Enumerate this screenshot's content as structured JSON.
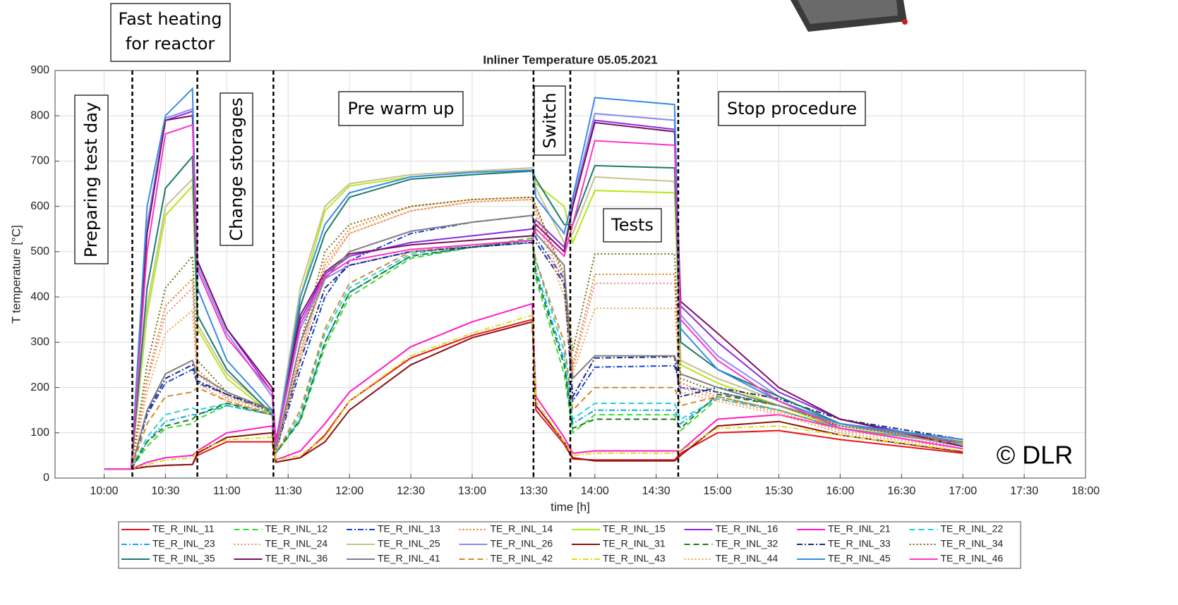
{
  "chart_data": {
    "type": "line",
    "title": "Inliner Temperature 05.05.2021",
    "xlabel": "time [h]",
    "ylabel": "T temperature [°C]",
    "xlim": [
      9.6,
      18
    ],
    "ylim": [
      0,
      900
    ],
    "xticks": [
      {
        "value": 10,
        "label": "10:00"
      },
      {
        "value": 10.5,
        "label": "10:30"
      },
      {
        "value": 11,
        "label": "11:00"
      },
      {
        "value": 11.5,
        "label": "11:30"
      },
      {
        "value": 12,
        "label": "12:00"
      },
      {
        "value": 12.5,
        "label": "12:30"
      },
      {
        "value": 13,
        "label": "13:00"
      },
      {
        "value": 13.5,
        "label": "13:30"
      },
      {
        "value": 14,
        "label": "14:00"
      },
      {
        "value": 14.5,
        "label": "14:30"
      },
      {
        "value": 15,
        "label": "15:00"
      },
      {
        "value": 15.5,
        "label": "15:30"
      },
      {
        "value": 16,
        "label": "16:00"
      },
      {
        "value": 16.5,
        "label": "16:30"
      },
      {
        "value": 17,
        "label": "17:00"
      },
      {
        "value": 17.5,
        "label": "17:30"
      },
      {
        "value": 18,
        "label": "18:00"
      }
    ],
    "yticks": [
      0,
      100,
      200,
      300,
      400,
      500,
      600,
      700,
      800,
      900
    ],
    "grid": true,
    "phase_boundaries": [
      10.23,
      10.76,
      11.38,
      13.5,
      13.8,
      14.68
    ],
    "annotations": [
      "Preparing test day",
      [
        "Fast heating",
        "for reactor"
      ],
      "Change storages",
      "Pre warm up",
      "Switch",
      "Tests",
      "Stop procedure"
    ],
    "watermark": "© DLR",
    "x": [
      10.0,
      10.22,
      10.35,
      10.5,
      10.72,
      10.76,
      11.0,
      11.37,
      11.4,
      11.6,
      11.8,
      12.0,
      12.5,
      13.0,
      13.49,
      13.52,
      13.75,
      13.82,
      14.0,
      14.65,
      14.7,
      15.0,
      15.5,
      16.0,
      17.0
    ],
    "series": [
      {
        "name": "TE_R_INL_11",
        "color": "#e8151b",
        "style": "solid",
        "values": [
          20,
          20,
          25,
          28,
          30,
          50,
          80,
          80,
          35,
          45,
          95,
          170,
          265,
          315,
          350,
          150,
          75,
          42,
          40,
          40,
          55,
          100,
          105,
          85,
          55
        ]
      },
      {
        "name": "TE_R_INL_12",
        "color": "#33dd33",
        "style": "dashed",
        "values": [
          20,
          20,
          70,
          110,
          120,
          130,
          160,
          140,
          55,
          125,
          290,
          400,
          485,
          510,
          530,
          440,
          230,
          100,
          140,
          140,
          105,
          175,
          150,
          110,
          75
        ]
      },
      {
        "name": "TE_R_INL_13",
        "color": "#1a3fd1",
        "style": "dashdot",
        "values": [
          20,
          20,
          140,
          210,
          240,
          210,
          185,
          145,
          60,
          240,
          400,
          480,
          540,
          565,
          580,
          530,
          440,
          170,
          245,
          248,
          200,
          190,
          160,
          115,
          80
        ]
      },
      {
        "name": "TE_R_INL_14",
        "color": "#e07a10",
        "style": "dotted",
        "values": [
          20,
          20,
          220,
          380,
          440,
          240,
          180,
          150,
          60,
          280,
          480,
          550,
          600,
          615,
          620,
          600,
          440,
          250,
          450,
          450,
          210,
          180,
          150,
          110,
          75
        ]
      },
      {
        "name": "TE_R_INL_15",
        "color": "#b3e81a",
        "style": "solid",
        "values": [
          20,
          20,
          360,
          580,
          645,
          330,
          220,
          140,
          80,
          400,
          590,
          645,
          665,
          675,
          680,
          650,
          600,
          520,
          635,
          630,
          250,
          210,
          160,
          110,
          78
        ]
      },
      {
        "name": "TE_R_INL_16",
        "color": "#8a2be2",
        "style": "solid",
        "values": [
          20,
          20,
          550,
          790,
          810,
          480,
          330,
          190,
          80,
          350,
          450,
          490,
          520,
          535,
          550,
          570,
          510,
          600,
          790,
          770,
          380,
          300,
          190,
          130,
          75
        ]
      },
      {
        "name": "TE_R_INL_21",
        "color": "#ff1ac6",
        "style": "solid",
        "values": [
          20,
          20,
          35,
          45,
          50,
          60,
          100,
          115,
          40,
          60,
          120,
          190,
          290,
          345,
          385,
          180,
          90,
          55,
          60,
          60,
          60,
          130,
          140,
          110,
          65
        ]
      },
      {
        "name": "TE_R_INL_22",
        "color": "#22d3d3",
        "style": "dashed",
        "values": [
          20,
          20,
          90,
          140,
          155,
          150,
          165,
          145,
          55,
          140,
          320,
          420,
          495,
          515,
          525,
          480,
          280,
          130,
          165,
          165,
          130,
          175,
          150,
          110,
          75
        ]
      },
      {
        "name": "TE_R_INL_23",
        "color": "#1aa3e8",
        "style": "dashdot",
        "values": [
          20,
          20,
          80,
          125,
          140,
          140,
          160,
          140,
          55,
          130,
          300,
          410,
          490,
          510,
          525,
          460,
          260,
          120,
          150,
          150,
          120,
          180,
          150,
          110,
          75
        ]
      },
      {
        "name": "TE_R_INL_24",
        "color": "#f08080",
        "style": "dotted",
        "values": [
          20,
          20,
          210,
          360,
          420,
          230,
          175,
          150,
          60,
          270,
          470,
          540,
          590,
          610,
          615,
          590,
          420,
          240,
          430,
          430,
          200,
          175,
          145,
          105,
          70
        ]
      },
      {
        "name": "TE_R_INL_25",
        "color": "#c8c08a",
        "style": "solid",
        "values": [
          20,
          20,
          380,
          600,
          660,
          340,
          230,
          145,
          80,
          420,
          600,
          650,
          670,
          678,
          685,
          640,
          520,
          540,
          665,
          655,
          260,
          220,
          170,
          115,
          80
        ]
      },
      {
        "name": "TE_R_INL_26",
        "color": "#8a8af0",
        "style": "solid",
        "values": [
          20,
          20,
          560,
          795,
          815,
          470,
          320,
          180,
          75,
          330,
          440,
          470,
          500,
          510,
          520,
          560,
          500,
          610,
          805,
          790,
          360,
          270,
          180,
          120,
          70
        ]
      },
      {
        "name": "TE_R_INL_31",
        "color": "#8b1010",
        "style": "solid",
        "values": [
          20,
          20,
          25,
          28,
          30,
          55,
          90,
          100,
          35,
          45,
          80,
          150,
          250,
          310,
          345,
          160,
          80,
          45,
          38,
          38,
          50,
          115,
          125,
          95,
          58
        ]
      },
      {
        "name": "TE_R_INL_32",
        "color": "#1a7a1a",
        "style": "dashed",
        "values": [
          20,
          20,
          80,
          115,
          130,
          140,
          165,
          140,
          55,
          130,
          300,
          410,
          490,
          510,
          525,
          450,
          250,
          110,
          130,
          130,
          110,
          185,
          160,
          120,
          80
        ]
      },
      {
        "name": "TE_R_INL_33",
        "color": "#1a2a7a",
        "style": "dashdot",
        "values": [
          20,
          20,
          145,
          220,
          250,
          215,
          185,
          150,
          60,
          260,
          420,
          470,
          500,
          510,
          520,
          520,
          430,
          180,
          265,
          268,
          180,
          200,
          175,
          130,
          85
        ]
      },
      {
        "name": "TE_R_INL_34",
        "color": "#6b6b10",
        "style": "dotted",
        "values": [
          20,
          20,
          250,
          420,
          490,
          260,
          190,
          150,
          60,
          300,
          500,
          560,
          600,
          615,
          620,
          600,
          450,
          280,
          495,
          495,
          220,
          190,
          160,
          115,
          80
        ]
      },
      {
        "name": "TE_R_INL_35",
        "color": "#1a7a6b",
        "style": "solid",
        "values": [
          20,
          20,
          420,
          640,
          710,
          360,
          240,
          140,
          70,
          380,
          540,
          620,
          660,
          670,
          678,
          660,
          560,
          560,
          690,
          685,
          300,
          240,
          180,
          120,
          85
        ]
      },
      {
        "name": "TE_R_INL_36",
        "color": "#7a1060",
        "style": "solid",
        "values": [
          20,
          20,
          540,
          790,
          800,
          480,
          330,
          200,
          80,
          360,
          455,
          495,
          515,
          525,
          535,
          560,
          500,
          600,
          785,
          765,
          390,
          320,
          200,
          130,
          70
        ]
      },
      {
        "name": "TE_R_INL_41",
        "color": "#808080",
        "style": "solid",
        "values": [
          20,
          20,
          150,
          230,
          260,
          230,
          190,
          150,
          60,
          300,
          440,
          500,
          545,
          565,
          580,
          540,
          470,
          220,
          270,
          270,
          230,
          200,
          160,
          120,
          80
        ]
      },
      {
        "name": "TE_R_INL_42",
        "color": "#d08a30",
        "style": "dashed",
        "values": [
          20,
          20,
          120,
          180,
          190,
          200,
          170,
          140,
          55,
          150,
          330,
          430,
          500,
          515,
          525,
          480,
          300,
          150,
          200,
          200,
          160,
          180,
          150,
          110,
          75
        ]
      },
      {
        "name": "TE_R_INL_43",
        "color": "#d6e01a",
        "style": "dashdot",
        "values": [
          20,
          20,
          30,
          40,
          45,
          60,
          85,
          90,
          40,
          50,
          90,
          170,
          270,
          320,
          360,
          170,
          80,
          50,
          55,
          55,
          60,
          110,
          115,
          95,
          60
        ]
      },
      {
        "name": "TE_R_INL_44",
        "color": "#f0a040",
        "style": "dotted",
        "values": [
          20,
          20,
          190,
          320,
          370,
          210,
          170,
          145,
          60,
          260,
          460,
          540,
          590,
          610,
          615,
          580,
          400,
          230,
          375,
          375,
          190,
          170,
          140,
          100,
          65
        ]
      },
      {
        "name": "TE_R_INL_45",
        "color": "#3a8ae8",
        "style": "solid",
        "values": [
          20,
          20,
          600,
          800,
          860,
          420,
          260,
          150,
          70,
          400,
          560,
          630,
          665,
          675,
          680,
          620,
          540,
          620,
          840,
          825,
          330,
          240,
          170,
          120,
          85
        ]
      },
      {
        "name": "TE_R_INL_46",
        "color": "#ff33cc",
        "style": "solid",
        "values": [
          20,
          20,
          500,
          760,
          780,
          460,
          310,
          190,
          75,
          340,
          445,
          480,
          505,
          515,
          525,
          550,
          490,
          560,
          745,
          735,
          350,
          260,
          170,
          110,
          65
        ]
      }
    ]
  }
}
